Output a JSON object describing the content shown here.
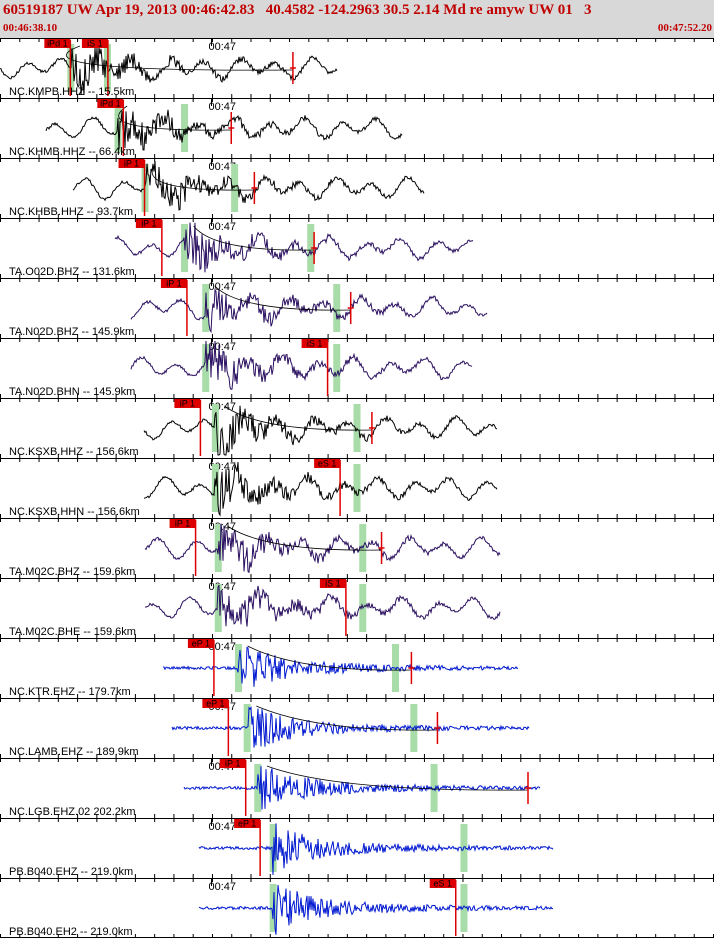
{
  "header": {
    "title": "60519187 UW Apr 19, 2013 00:46:42.83   40.4582 -124.2963 30.5 2.14 Md re amyw UW 01   3",
    "start_time": "00:46:38.10",
    "end_time": "00:47:52.20"
  },
  "chart_data": {
    "type": "seismogram",
    "time_axis": {
      "start": "00:46:38.10",
      "end": "00:47:52.20",
      "minute_label": "00:47"
    },
    "colors": {
      "black": "#000000",
      "purple": "#2a1060",
      "blue": "#0018d0",
      "pick": "#dd0000",
      "window": "#a8dca8",
      "header_text": "#c00000"
    },
    "channels": [
      {
        "label": "NC.KMPB.HHZ -- 15.5km",
        "color": "black",
        "picks": [
          {
            "name": "iPd",
            "t": 7.3
          },
          {
            "name": "iS",
            "t": 11.2
          }
        ],
        "windows": [
          7.3,
          11.1
        ],
        "coda": 30.4,
        "signal": [
          0,
          35
        ]
      },
      {
        "label": "NC.KHMB.HHZ -- 66.4km",
        "color": "black",
        "picks": [
          {
            "name": "iPd",
            "t": 12.8
          }
        ],
        "windows": [
          12.2,
          19.1
        ],
        "coda": 24.0,
        "signal": [
          4.8,
          41.7
        ]
      },
      {
        "label": "NC.KHBB.HHZ -- 93.7km",
        "color": "black",
        "picks": [
          {
            "name": "iP",
            "t": 15.0
          }
        ],
        "windows": [
          15.0,
          24.3
        ],
        "coda": 26.4,
        "signal": [
          7.6,
          44.0
        ]
      },
      {
        "label": "TA.O02D.BHZ -- 131.6km",
        "color": "purple",
        "picks": [
          {
            "name": "iP",
            "t": 16.8
          }
        ],
        "windows": [
          19.1,
          32.2
        ],
        "coda": 32.6,
        "signal": [
          11.9,
          49.1
        ]
      },
      {
        "label": "TA.N02D.BHZ -- 145.9km",
        "color": "purple",
        "picks": [
          {
            "name": "iP",
            "t": 19.4
          }
        ],
        "windows": [
          21.3,
          34.9
        ],
        "coda": 36.4,
        "signal": [
          13.6,
          50.5
        ]
      },
      {
        "label": "TA.N02D.BHN -- 145.9km",
        "color": "purple",
        "picks": [
          {
            "name": "iS",
            "t": 34.0
          }
        ],
        "windows": [
          21.3,
          34.9
        ],
        "coda": null,
        "signal": [
          13.6,
          49.0
        ]
      },
      {
        "label": "NC.KSXB.HHZ -- 156.6km",
        "color": "black",
        "picks": [
          {
            "name": "iP",
            "t": 20.8
          }
        ],
        "windows": [
          22.3,
          37.0
        ],
        "coda": 38.6,
        "signal": [
          14.9,
          51.6
        ]
      },
      {
        "label": "NC.KSXB.HHN -- 156.6km",
        "color": "black",
        "picks": [
          {
            "name": "eS",
            "t": 35.3
          }
        ],
        "windows": [
          22.3,
          37.0
        ],
        "coda": null,
        "signal": [
          14.9,
          51.6
        ]
      },
      {
        "label": "TA.M02C.BHZ -- 159.6km",
        "color": "purple",
        "picks": [
          {
            "name": "iP",
            "t": 20.3
          }
        ],
        "windows": [
          22.6,
          37.6
        ],
        "coda": 39.6,
        "signal": [
          15.1,
          51.9
        ]
      },
      {
        "label": "TA.M02C.BHE -- 159.6km",
        "color": "purple",
        "picks": [
          {
            "name": "iS",
            "t": 35.9
          }
        ],
        "windows": [
          22.6,
          37.6
        ],
        "coda": null,
        "signal": [
          15.1,
          51.9
        ]
      },
      {
        "label": "NC.KTR.EHZ -- 179.7km",
        "color": "blue",
        "picks": [
          {
            "name": "eP",
            "t": 22.2
          }
        ],
        "windows": [
          24.7,
          41.0
        ],
        "coda": 42.7,
        "signal": [
          16.9,
          53.8
        ]
      },
      {
        "label": "NC.LAMB.EHZ -- 189.9km",
        "color": "blue",
        "picks": [
          {
            "name": "eP",
            "t": 23.7
          }
        ],
        "windows": [
          25.6,
          42.9
        ],
        "coda": 45.4,
        "signal": [
          17.9,
          54.9
        ]
      },
      {
        "label": "NC.LGB.EHZ.02 202.2km",
        "color": "blue",
        "picks": [
          {
            "name": "iP",
            "t": 25.5
          }
        ],
        "windows": [
          26.7,
          45.0
        ],
        "coda": 54.8,
        "signal": [
          19.1,
          56.0
        ]
      },
      {
        "label": "PB.B040.EHZ -- 219.0km",
        "color": "blue",
        "picks": [
          {
            "name": "eP",
            "t": 27.0
          }
        ],
        "windows": [
          28.3,
          48.1
        ],
        "coda": null,
        "signal": [
          20.7,
          57.4
        ]
      },
      {
        "label": "PB.B040.EH2 -- 219.0km",
        "color": "blue",
        "picks": [
          {
            "name": "eS",
            "t": 47.3
          }
        ],
        "windows": [
          28.3,
          48.1
        ],
        "coda": null,
        "signal": [
          20.7,
          57.4
        ]
      }
    ]
  }
}
